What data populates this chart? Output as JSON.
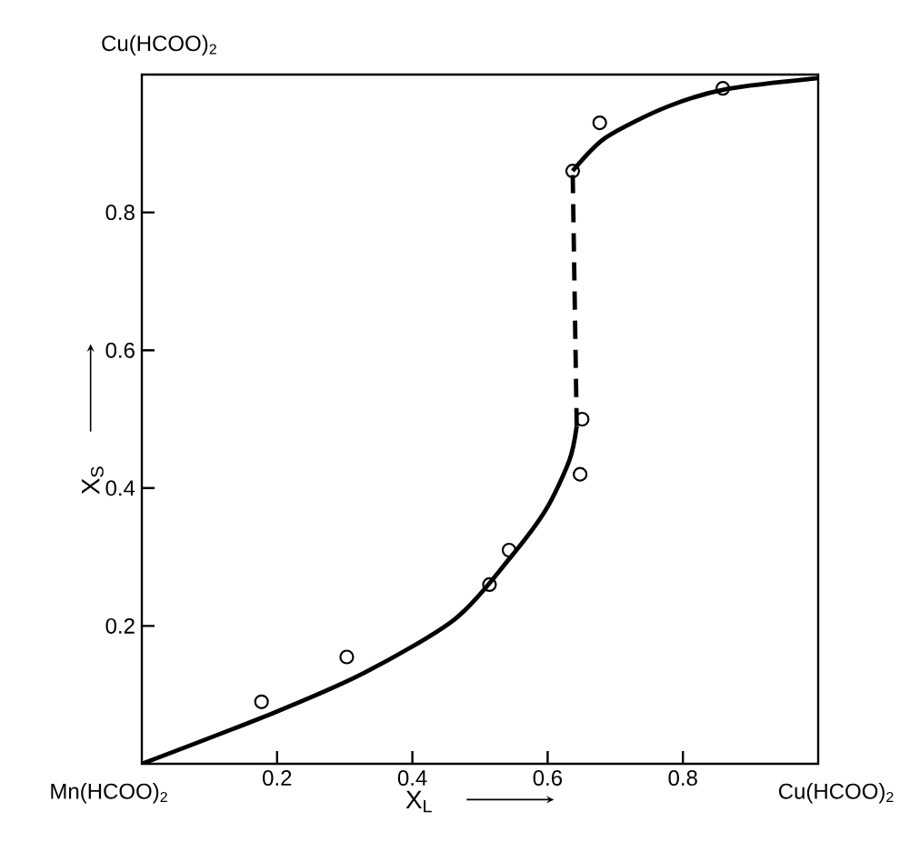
{
  "chart_data": {
    "type": "line",
    "xlabel": "X$_{L}$",
    "ylabel": "X$_{S}$",
    "annotations": [
      "Cu(HCOO)$_{2}$",
      "Mn(HCOO)$_{2}$",
      "Cu(HCOO)$_{2}$"
    ],
    "xlim": [
      0,
      1
    ],
    "ylim": [
      0,
      1
    ],
    "xticks": [
      0.2,
      0.4,
      0.6,
      0.8
    ],
    "yticks": [
      0.2,
      0.4,
      0.6,
      0.8
    ],
    "series": [
      {
        "type": "scatter",
        "color": "#000000",
        "marker": "circle",
        "x": [
          0.177,
          0.303,
          0.514,
          0.543,
          0.648,
          0.651,
          0.637,
          0.677,
          0.859
        ],
        "values": [
          0.09,
          0.155,
          0.26,
          0.31,
          0.42,
          0.5,
          0.86,
          0.93,
          0.98
        ]
      },
      {
        "color": "#000000",
        "line_style": "solid",
        "x": [
          0,
          0.195,
          0.329,
          0.463,
          0.543,
          0.597,
          0.632,
          0.643
        ],
        "values": [
          0,
          0.074,
          0.132,
          0.21,
          0.297,
          0.368,
          0.44,
          0.49
        ]
      },
      {
        "color": "#000000",
        "line_style": "dashed",
        "x": [
          0.643,
          0.637
        ],
        "values": [
          0.49,
          0.86
        ]
      },
      {
        "color": "#000000",
        "line_style": "solid",
        "x": [
          0.637,
          0.685,
          0.776,
          0.865,
          1.0
        ],
        "values": [
          0.86,
          0.908,
          0.953,
          0.979,
          0.995
        ]
      }
    ]
  }
}
